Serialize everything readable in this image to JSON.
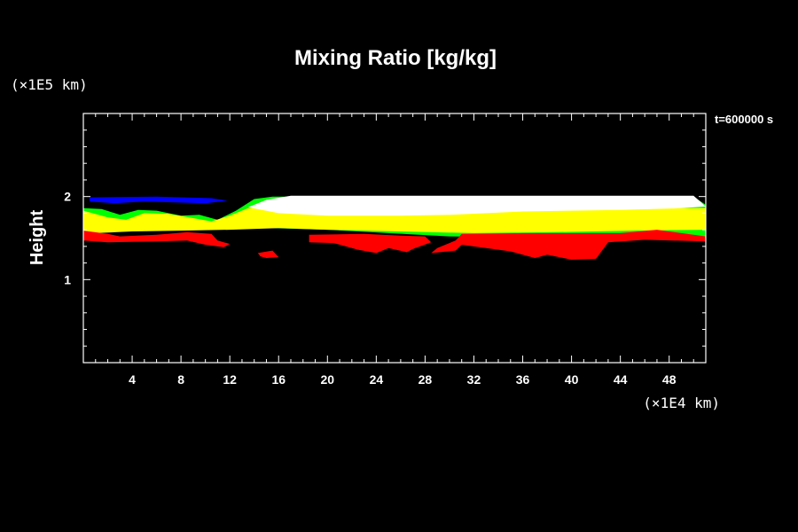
{
  "chart_data": {
    "type": "heatmap",
    "title": "Mixing Ratio [kg/kg]",
    "ylabel": "Height",
    "y_unit": "(×1E5 km)",
    "x_unit": "(×1E4 km)",
    "time_label": "t=600000 s",
    "xlim": [
      0,
      51
    ],
    "ylim": [
      0,
      3
    ],
    "x_ticks": [
      4,
      8,
      12,
      16,
      20,
      24,
      28,
      32,
      36,
      40,
      44,
      48
    ],
    "x_tick_labels": [
      "4",
      "8",
      "12",
      "16",
      "20",
      "24",
      "28",
      "32",
      "36",
      "40",
      "44",
      "48"
    ],
    "y_ticks": [
      1,
      2
    ],
    "y_tick_labels": [
      "1",
      "2"
    ],
    "colors": {
      "white": "#ffffff",
      "yellow": "#ffff00",
      "red": "#ff0000",
      "green": "#00ff00",
      "blue": "#0000ff",
      "cyan": "#00ffff",
      "frame": "#ffffff",
      "background": "#000000"
    },
    "regions": [
      {
        "color": "blue",
        "points": [
          [
            0.5,
            1.99
          ],
          [
            6,
            2.0
          ],
          [
            10.5,
            1.98
          ],
          [
            11.8,
            1.95
          ],
          [
            10,
            1.92
          ],
          [
            5,
            1.94
          ],
          [
            2.5,
            1.92
          ],
          [
            0.5,
            1.94
          ]
        ]
      },
      {
        "color": "blue",
        "points": [
          [
            44,
            2.0
          ],
          [
            49,
            2.0
          ],
          [
            50,
            1.96
          ],
          [
            47,
            1.95
          ]
        ]
      },
      {
        "color": "green",
        "points": [
          [
            0,
            1.86
          ],
          [
            1.5,
            1.85
          ],
          [
            3,
            1.78
          ],
          [
            4.5,
            1.84
          ],
          [
            6,
            1.83
          ],
          [
            8,
            1.77
          ],
          [
            9.5,
            1.78
          ],
          [
            11,
            1.72
          ],
          [
            12.5,
            1.83
          ],
          [
            14,
            1.97
          ],
          [
            15.5,
            2.0
          ],
          [
            50,
            2.0
          ],
          [
            51,
            1.9
          ],
          [
            51,
            1.52
          ],
          [
            44,
            1.52
          ],
          [
            36,
            1.51
          ],
          [
            30,
            1.52
          ],
          [
            25,
            1.56
          ],
          [
            20,
            1.6
          ],
          [
            15.5,
            1.62
          ],
          [
            11.5,
            1.61
          ],
          [
            8,
            1.61
          ],
          [
            3,
            1.59
          ],
          [
            0,
            1.61
          ]
        ]
      },
      {
        "color": "yellow",
        "points": [
          [
            0,
            1.83
          ],
          [
            2,
            1.75
          ],
          [
            3.5,
            1.72
          ],
          [
            5,
            1.8
          ],
          [
            7,
            1.79
          ],
          [
            9,
            1.74
          ],
          [
            10.5,
            1.7
          ],
          [
            12,
            1.77
          ],
          [
            13.5,
            1.86
          ],
          [
            16,
            1.87
          ],
          [
            51,
            1.86
          ],
          [
            51,
            1.6
          ],
          [
            45,
            1.59
          ],
          [
            38,
            1.57
          ],
          [
            32,
            1.56
          ],
          [
            26,
            1.58
          ],
          [
            20,
            1.6
          ],
          [
            16,
            1.62
          ],
          [
            12,
            1.6
          ],
          [
            8,
            1.59
          ],
          [
            4,
            1.58
          ],
          [
            1,
            1.56
          ],
          [
            0,
            1.58
          ]
        ]
      },
      {
        "color": "white",
        "points": [
          [
            13.5,
            1.87
          ],
          [
            15,
            1.96
          ],
          [
            17,
            2.01
          ],
          [
            50,
            2.01
          ],
          [
            51,
            1.88
          ],
          [
            49,
            1.86
          ],
          [
            44,
            1.84
          ],
          [
            36,
            1.82
          ],
          [
            30,
            1.78
          ],
          [
            26,
            1.77
          ],
          [
            20,
            1.77
          ],
          [
            16,
            1.8
          ]
        ]
      },
      {
        "color": "red",
        "points": [
          [
            0,
            1.59
          ],
          [
            2,
            1.55
          ],
          [
            3,
            1.52
          ],
          [
            6,
            1.54
          ],
          [
            8.5,
            1.57
          ],
          [
            10.5,
            1.55
          ],
          [
            11,
            1.47
          ],
          [
            12,
            1.43
          ],
          [
            11.5,
            1.39
          ],
          [
            10,
            1.42
          ],
          [
            8.5,
            1.47
          ],
          [
            6,
            1.46
          ],
          [
            2,
            1.45
          ],
          [
            0,
            1.47
          ]
        ]
      },
      {
        "color": "red",
        "points": [
          [
            14.3,
            1.32
          ],
          [
            15.5,
            1.35
          ],
          [
            16,
            1.27
          ],
          [
            15,
            1.26
          ],
          [
            14.5,
            1.28
          ]
        ]
      },
      {
        "color": "red",
        "points": [
          [
            18.5,
            1.54
          ],
          [
            23,
            1.55
          ],
          [
            26,
            1.53
          ],
          [
            28,
            1.52
          ],
          [
            28.5,
            1.45
          ],
          [
            27,
            1.37
          ],
          [
            26.5,
            1.33
          ],
          [
            25,
            1.38
          ],
          [
            24,
            1.32
          ],
          [
            22.5,
            1.36
          ],
          [
            20.5,
            1.44
          ],
          [
            18.5,
            1.45
          ]
        ]
      },
      {
        "color": "red",
        "points": [
          [
            31,
            1.55
          ],
          [
            36,
            1.56
          ],
          [
            44,
            1.56
          ],
          [
            47,
            1.6
          ],
          [
            49,
            1.56
          ],
          [
            51,
            1.52
          ],
          [
            51,
            1.46
          ],
          [
            46,
            1.48
          ],
          [
            43,
            1.45
          ],
          [
            42,
            1.25
          ],
          [
            40,
            1.24
          ],
          [
            38,
            1.3
          ],
          [
            37,
            1.26
          ],
          [
            35,
            1.34
          ],
          [
            33,
            1.38
          ],
          [
            31,
            1.42
          ],
          [
            30.5,
            1.35
          ],
          [
            28.5,
            1.32
          ],
          [
            29,
            1.38
          ],
          [
            30.5,
            1.47
          ]
        ]
      }
    ]
  }
}
